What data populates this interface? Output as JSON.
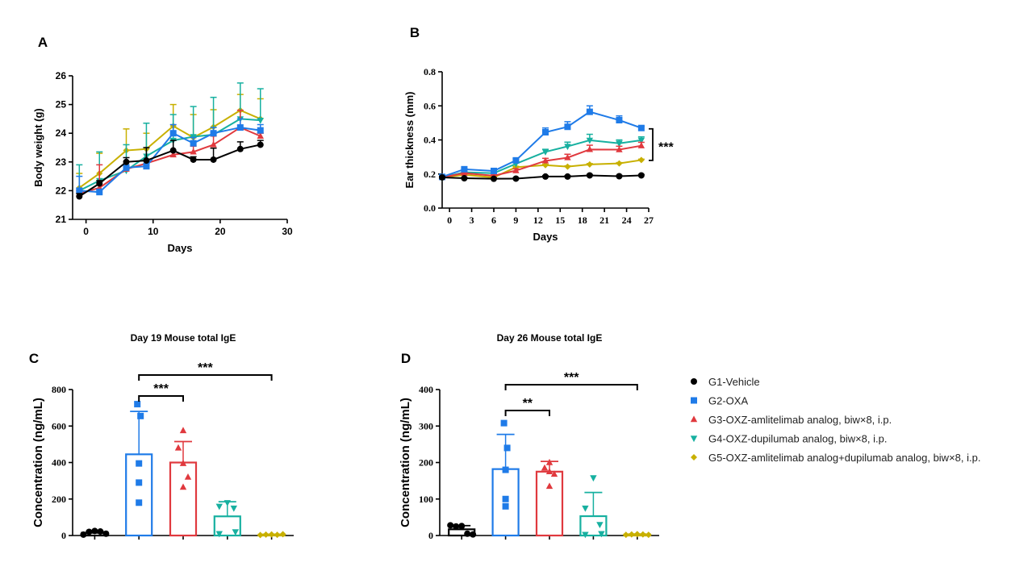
{
  "colors": {
    "G1": "#000000",
    "G2": "#1f7be8",
    "G3": "#e0393e",
    "G4": "#17b0a0",
    "G5": "#c8b000"
  },
  "legend": [
    {
      "key": "G1",
      "label": "G1-Vehicle",
      "marker": "circle"
    },
    {
      "key": "G2",
      "label": "G2-OXA",
      "marker": "square"
    },
    {
      "key": "G3",
      "label": "G3-OXZ-amlitelimab analog, biw×8, i.p.",
      "marker": "triangle-up"
    },
    {
      "key": "G4",
      "label": "G4-OXZ-dupilumab analog, biw×8, i.p.",
      "marker": "triangle-down"
    },
    {
      "key": "G5",
      "label": "G5-OXZ-amlitelimab analog+dupilumab analog, biw×8, i.p.",
      "marker": "diamond"
    }
  ],
  "chart_data": [
    {
      "panel": "A",
      "type": "line",
      "xlabel": "Days",
      "ylabel": "Body weight (g)",
      "xlim": [
        -2,
        30
      ],
      "ylim": [
        21,
        26
      ],
      "xticks": [
        0,
        10,
        20,
        30
      ],
      "yticks": [
        21,
        22,
        23,
        24,
        25,
        26
      ],
      "x": [
        -1,
        2,
        6,
        9,
        13,
        16,
        19,
        23,
        26
      ],
      "series": [
        {
          "key": "G1",
          "values": [
            21.8,
            22.25,
            23.0,
            23.05,
            23.4,
            23.08,
            23.08,
            23.45,
            23.6
          ],
          "err": [
            0.1,
            0.1,
            0.15,
            0.45,
            0.35,
            0.1,
            0.4,
            0.25,
            0.15
          ]
        },
        {
          "key": "G2",
          "values": [
            22.0,
            21.95,
            22.8,
            22.85,
            24.0,
            23.65,
            24.0,
            24.2,
            24.1
          ],
          "err": [
            0.5,
            0.1,
            0.1,
            0.1,
            0.3,
            0.2,
            0.2,
            0.3,
            0.2
          ]
        },
        {
          "key": "G3",
          "values": [
            21.9,
            22.1,
            22.75,
            22.95,
            23.25,
            23.35,
            23.6,
            24.2,
            23.9
          ],
          "err": [
            0.1,
            0.8,
            0.1,
            0.1,
            0.1,
            0.2,
            0.3,
            0.6,
            0.1
          ]
        },
        {
          "key": "G4",
          "values": [
            22.0,
            22.35,
            22.7,
            23.2,
            23.75,
            23.88,
            23.95,
            24.5,
            24.45
          ],
          "err": [
            0.9,
            1.0,
            0.9,
            1.15,
            0.9,
            1.05,
            1.3,
            1.25,
            1.1
          ]
        },
        {
          "key": "G5",
          "values": [
            22.1,
            22.6,
            23.4,
            23.45,
            24.25,
            23.85,
            24.22,
            24.8,
            24.5
          ],
          "err": [
            0.5,
            0.7,
            0.75,
            0.55,
            0.75,
            0.8,
            0.6,
            0.55,
            0.7
          ]
        }
      ]
    },
    {
      "panel": "B",
      "type": "line",
      "xlabel": "Days",
      "ylabel": "Ear thickness (mm)",
      "xlim": [
        -1,
        27
      ],
      "ylim": [
        0.0,
        0.8
      ],
      "xticks": [
        0,
        3,
        6,
        9,
        12,
        15,
        18,
        21,
        24,
        27
      ],
      "yticks": [
        0.0,
        0.2,
        0.4,
        0.6,
        0.8
      ],
      "ytick_labels": [
        "0.0",
        "0.2",
        "0.4",
        "0.6",
        "0.8"
      ],
      "x": [
        -1,
        2,
        6,
        9,
        13,
        16,
        19,
        23,
        26
      ],
      "series": [
        {
          "key": "G1",
          "values": [
            0.18,
            0.175,
            0.172,
            0.173,
            0.185,
            0.185,
            0.192,
            0.187,
            0.192
          ],
          "err": [
            0.005,
            0.005,
            0.005,
            0.005,
            0.005,
            0.005,
            0.005,
            0.005,
            0.005
          ]
        },
        {
          "key": "G2",
          "values": [
            0.183,
            0.228,
            0.218,
            0.28,
            0.445,
            0.477,
            0.565,
            0.516,
            0.47
          ],
          "err": [
            0.005,
            0.005,
            0.005,
            0.01,
            0.025,
            0.03,
            0.035,
            0.025,
            0.01
          ]
        },
        {
          "key": "G3",
          "values": [
            0.18,
            0.205,
            0.19,
            0.22,
            0.277,
            0.296,
            0.344,
            0.343,
            0.366
          ],
          "err": [
            0.005,
            0.005,
            0.005,
            0.01,
            0.015,
            0.02,
            0.025,
            0.02,
            0.02
          ]
        },
        {
          "key": "G4",
          "values": [
            0.18,
            0.21,
            0.205,
            0.26,
            0.33,
            0.362,
            0.398,
            0.38,
            0.398
          ],
          "err": [
            0.005,
            0.005,
            0.005,
            0.01,
            0.015,
            0.025,
            0.035,
            0.02,
            0.02
          ]
        },
        {
          "key": "G5",
          "values": [
            0.18,
            0.195,
            0.18,
            0.24,
            0.252,
            0.243,
            0.256,
            0.262,
            0.282
          ],
          "err": [
            0.005,
            0.005,
            0.005,
            0.005,
            0.005,
            0.005,
            0.005,
            0.005,
            0.005
          ]
        }
      ],
      "annotation": "***"
    },
    {
      "panel": "C",
      "type": "bar",
      "title": "Day 19 Mouse total IgE",
      "ylabel": "Concentration (ng/mL)",
      "ylim": [
        0,
        800
      ],
      "yticks": [
        0,
        200,
        400,
        600,
        800
      ],
      "bars": [
        {
          "key": "G1",
          "mean": 15,
          "sd": 8,
          "points": [
            5,
            20,
            25,
            22,
            10
          ]
        },
        {
          "key": "G2",
          "mean": 445,
          "sd": 235,
          "points": [
            720,
            655,
            395,
            290,
            180
          ]
        },
        {
          "key": "G3",
          "mean": 400,
          "sd": 115,
          "points": [
            575,
            480,
            395,
            320,
            265
          ]
        },
        {
          "key": "G4",
          "mean": 105,
          "sd": 80,
          "points": [
            180,
            160,
            150,
            20,
            10
          ]
        },
        {
          "key": "G5",
          "mean": 5,
          "sd": 2,
          "points": [
            3,
            5,
            6,
            4,
            7
          ]
        }
      ],
      "comparisons": [
        {
          "from": 1,
          "to": 3,
          "label": "***"
        },
        {
          "from": 1,
          "to": 5,
          "label": "***"
        }
      ]
    },
    {
      "panel": "D",
      "type": "bar",
      "title": "Day 26 Mouse total IgE",
      "ylabel": "Concentration (ng/mL)",
      "ylim": [
        0,
        400
      ],
      "yticks": [
        0,
        100,
        200,
        300,
        400
      ],
      "bars": [
        {
          "key": "G1",
          "mean": 17,
          "sd": 10,
          "points": [
            28,
            25,
            26,
            5,
            3
          ]
        },
        {
          "key": "G2",
          "mean": 182,
          "sd": 95,
          "points": [
            308,
            240,
            180,
            100,
            80
          ]
        },
        {
          "key": "G3",
          "mean": 175,
          "sd": 28,
          "points": [
            200,
            185,
            175,
            168,
            135
          ]
        },
        {
          "key": "G4",
          "mean": 53,
          "sd": 65,
          "points": [
            158,
            75,
            30,
            5,
            3
          ]
        },
        {
          "key": "G5",
          "mean": 3,
          "sd": 1,
          "points": [
            2,
            3,
            4,
            3,
            2
          ]
        }
      ],
      "comparisons": [
        {
          "from": 1,
          "to": 3,
          "label": "**"
        },
        {
          "from": 1,
          "to": 5,
          "label": "***"
        }
      ]
    }
  ],
  "panels": {
    "A": "A",
    "B": "B",
    "C": "C",
    "D": "D"
  }
}
